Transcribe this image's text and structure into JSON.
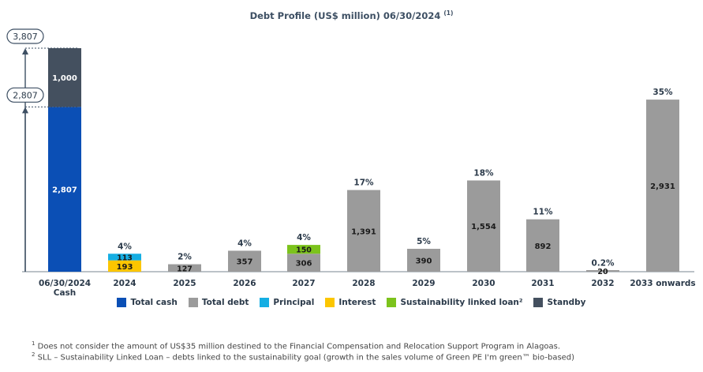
{
  "title": "Debt Profile (US$ million) 06/30/2024",
  "title_note": "(1)",
  "colors": {
    "total_cash": "#0b4fb5",
    "total_debt": "#9b9b9b",
    "principal": "#15aee3",
    "interest": "#fcc600",
    "sll": "#7cc31c",
    "standby": "#44505f",
    "text": "#2b3a4a"
  },
  "chart_data": {
    "type": "bar",
    "stacked": true,
    "title": "Debt Profile (US$ million) 06/30/2024",
    "ylim": [
      0,
      3807
    ],
    "grid": false,
    "categories": [
      "06/30/2024\nCash",
      "2024",
      "2025",
      "2026",
      "2027",
      "2028",
      "2029",
      "2030",
      "2031",
      "2032",
      "2033 onwards"
    ],
    "series": [
      {
        "name": "Total cash",
        "key": "total_cash",
        "values": [
          2807,
          null,
          null,
          null,
          null,
          null,
          null,
          null,
          null,
          null,
          null
        ]
      },
      {
        "name": "Standby",
        "key": "standby",
        "values": [
          1000,
          null,
          null,
          null,
          null,
          null,
          null,
          null,
          null,
          null,
          null
        ]
      },
      {
        "name": "Interest",
        "key": "interest",
        "values": [
          null,
          193,
          null,
          null,
          null,
          null,
          null,
          null,
          null,
          null,
          null
        ]
      },
      {
        "name": "Principal",
        "key": "principal",
        "values": [
          null,
          113,
          null,
          null,
          null,
          null,
          null,
          null,
          null,
          null,
          null
        ]
      },
      {
        "name": "Total debt",
        "key": "total_debt",
        "values": [
          null,
          null,
          127,
          357,
          306,
          1391,
          390,
          1554,
          892,
          20,
          2931
        ]
      },
      {
        "name": "Sustainability linked loan²",
        "key": "sll",
        "values": [
          null,
          null,
          null,
          null,
          150,
          null,
          null,
          null,
          null,
          null,
          null
        ]
      }
    ],
    "percent_labels": [
      null,
      "4%",
      "2%",
      "4%",
      "4%",
      "17%",
      "5%",
      "18%",
      "11%",
      "0.2%",
      "35%"
    ],
    "axis_markers": [
      {
        "label": "3,807",
        "value": 3807
      },
      {
        "label": "2,807",
        "value": 2807
      }
    ],
    "legend": [
      "Total cash",
      "Total debt",
      "Principal",
      "Interest",
      "Sustainability linked loan²",
      "Standby"
    ],
    "legend_position": "bottom"
  },
  "legend": [
    {
      "label": "Total cash",
      "key": "total_cash"
    },
    {
      "label": "Total debt",
      "key": "total_debt"
    },
    {
      "label": "Principal",
      "key": "principal"
    },
    {
      "label": "Interest",
      "key": "interest"
    },
    {
      "label": "Sustainability linked loan²",
      "key": "sll"
    },
    {
      "label": "Standby",
      "key": "standby"
    }
  ],
  "footnotes": {
    "note1_mark": "1",
    "note1": "Does not consider the amount of US$35 million destined to the Financial Compensation and Relocation Support Program in Alagoas.",
    "note2_mark": "2",
    "note2": "SLL – Sustainability Linked Loan – debts linked to the sustainability goal (growth in the sales volume of Green PE I'm green™ bio-based)"
  }
}
